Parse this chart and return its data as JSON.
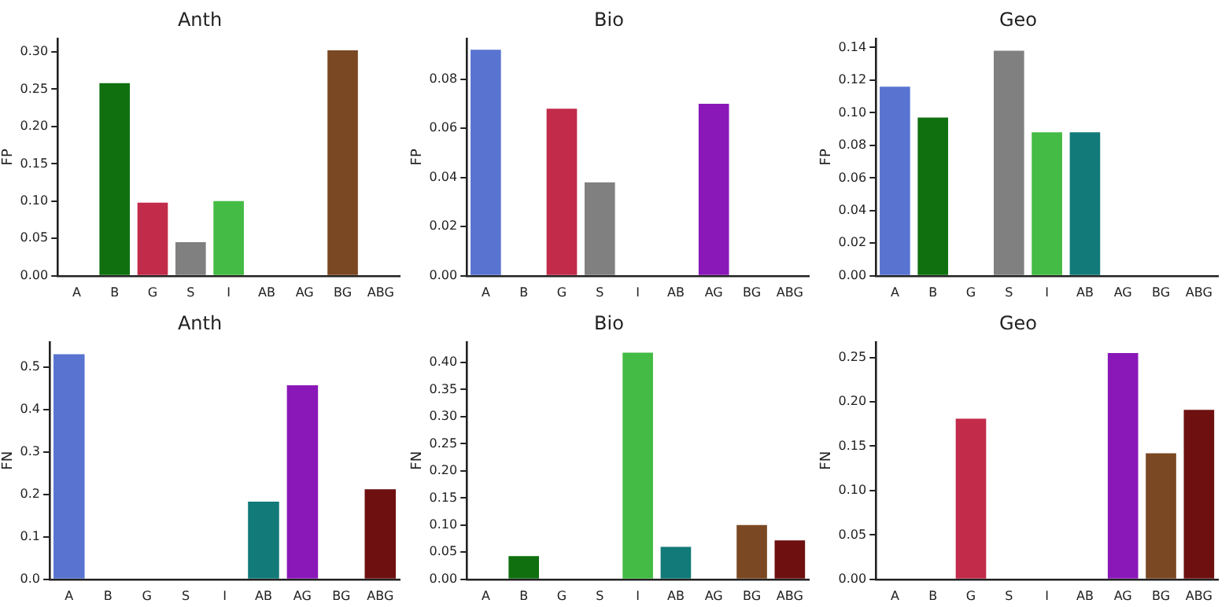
{
  "chart_data": [
    {
      "type": "bar",
      "title": "Anth",
      "ylabel": "FP",
      "categories": [
        "A",
        "B",
        "G",
        "S",
        "I",
        "AB",
        "AG",
        "BG",
        "ABG"
      ],
      "values": [
        0,
        0.258,
        0.098,
        0.045,
        0.1,
        0,
        0,
        0.302,
        0
      ],
      "colors": [
        "#5874d0",
        "#107010",
        "#c22b4a",
        "#808080",
        "#44bb44",
        "#127a78",
        "#8a18b8",
        "#7a4822",
        "#6e1010"
      ],
      "ylim": [
        0,
        0.318
      ],
      "yticks": [
        {
          "value": 0,
          "label": "0.00"
        },
        {
          "value": 0.05,
          "label": "0.05"
        },
        {
          "value": 0.1,
          "label": "0.10"
        },
        {
          "value": 0.15,
          "label": "0.15"
        },
        {
          "value": 0.2,
          "label": "0.20"
        },
        {
          "value": 0.25,
          "label": "0.25"
        },
        {
          "value": 0.3,
          "label": "0.30"
        }
      ],
      "grid": false
    },
    {
      "type": "bar",
      "title": "Bio",
      "ylabel": "FP",
      "categories": [
        "A",
        "B",
        "G",
        "S",
        "I",
        "AB",
        "AG",
        "BG",
        "ABG"
      ],
      "values": [
        0.092,
        0,
        0.068,
        0.038,
        0,
        0,
        0.07,
        0,
        0
      ],
      "colors": [
        "#5874d0",
        "#107010",
        "#c22b4a",
        "#808080",
        "#44bb44",
        "#127a78",
        "#8a18b8",
        "#7a4822",
        "#6e1010"
      ],
      "ylim": [
        0,
        0.0966
      ],
      "yticks": [
        {
          "value": 0,
          "label": "0.00"
        },
        {
          "value": 0.02,
          "label": "0.02"
        },
        {
          "value": 0.04,
          "label": "0.04"
        },
        {
          "value": 0.06,
          "label": "0.06"
        },
        {
          "value": 0.08,
          "label": "0.08"
        }
      ],
      "grid": false
    },
    {
      "type": "bar",
      "title": "Geo",
      "ylabel": "FP",
      "categories": [
        "A",
        "B",
        "G",
        "S",
        "I",
        "AB",
        "AG",
        "BG",
        "ABG"
      ],
      "values": [
        0.116,
        0.097,
        0,
        0.138,
        0.088,
        0.088,
        0,
        0,
        0
      ],
      "colors": [
        "#5874d0",
        "#107010",
        "#c22b4a",
        "#808080",
        "#44bb44",
        "#127a78",
        "#8a18b8",
        "#7a4822",
        "#6e1010"
      ],
      "ylim": [
        0,
        0.1456
      ],
      "yticks": [
        {
          "value": 0,
          "label": "0.00"
        },
        {
          "value": 0.02,
          "label": "0.02"
        },
        {
          "value": 0.04,
          "label": "0.04"
        },
        {
          "value": 0.06,
          "label": "0.06"
        },
        {
          "value": 0.08,
          "label": "0.08"
        },
        {
          "value": 0.1,
          "label": "0.10"
        },
        {
          "value": 0.12,
          "label": "0.12"
        },
        {
          "value": 0.14,
          "label": "0.14"
        }
      ],
      "grid": false
    },
    {
      "type": "bar",
      "title": "Anth",
      "ylabel": "FN",
      "categories": [
        "A",
        "B",
        "G",
        "S",
        "I",
        "AB",
        "AG",
        "BG",
        "ABG"
      ],
      "values": [
        0.53,
        0,
        0,
        0,
        0,
        0.183,
        0.457,
        0,
        0.212
      ],
      "colors": [
        "#5874d0",
        "#107010",
        "#c22b4a",
        "#808080",
        "#44bb44",
        "#127a78",
        "#8a18b8",
        "#7a4822",
        "#6e1010"
      ],
      "ylim": [
        0,
        0.559
      ],
      "yticks": [
        {
          "value": 0,
          "label": "0.0"
        },
        {
          "value": 0.1,
          "label": "0.1"
        },
        {
          "value": 0.2,
          "label": "0.2"
        },
        {
          "value": 0.3,
          "label": "0.3"
        },
        {
          "value": 0.4,
          "label": "0.4"
        },
        {
          "value": 0.5,
          "label": "0.5"
        }
      ],
      "grid": false
    },
    {
      "type": "bar",
      "title": "Bio",
      "ylabel": "FN",
      "categories": [
        "A",
        "B",
        "G",
        "S",
        "I",
        "AB",
        "AG",
        "BG",
        "ABG"
      ],
      "values": [
        0,
        0.043,
        0,
        0,
        0.418,
        0.06,
        0,
        0.1,
        0.072
      ],
      "colors": [
        "#5874d0",
        "#107010",
        "#c22b4a",
        "#808080",
        "#44bb44",
        "#127a78",
        "#8a18b8",
        "#7a4822",
        "#6e1010"
      ],
      "ylim": [
        0,
        0.438
      ],
      "yticks": [
        {
          "value": 0,
          "label": "0.00"
        },
        {
          "value": 0.05,
          "label": "0.05"
        },
        {
          "value": 0.1,
          "label": "0.10"
        },
        {
          "value": 0.15,
          "label": "0.15"
        },
        {
          "value": 0.2,
          "label": "0.20"
        },
        {
          "value": 0.25,
          "label": "0.25"
        },
        {
          "value": 0.3,
          "label": "0.30"
        },
        {
          "value": 0.35,
          "label": "0.35"
        },
        {
          "value": 0.4,
          "label": "0.40"
        }
      ],
      "grid": false
    },
    {
      "type": "bar",
      "title": "Geo",
      "ylabel": "FN",
      "categories": [
        "A",
        "B",
        "G",
        "S",
        "I",
        "AB",
        "AG",
        "BG",
        "ABG"
      ],
      "values": [
        0,
        0,
        0.181,
        0,
        0,
        0,
        0.255,
        0.142,
        0.191
      ],
      "colors": [
        "#5874d0",
        "#107010",
        "#c22b4a",
        "#808080",
        "#44bb44",
        "#127a78",
        "#8a18b8",
        "#7a4822",
        "#6e1010"
      ],
      "ylim": [
        0,
        0.2675
      ],
      "yticks": [
        {
          "value": 0,
          "label": "0.00"
        },
        {
          "value": 0.05,
          "label": "0.05"
        },
        {
          "value": 0.1,
          "label": "0.10"
        },
        {
          "value": 0.15,
          "label": "0.15"
        },
        {
          "value": 0.2,
          "label": "0.20"
        },
        {
          "value": 0.25,
          "label": "0.25"
        }
      ],
      "grid": false
    }
  ]
}
